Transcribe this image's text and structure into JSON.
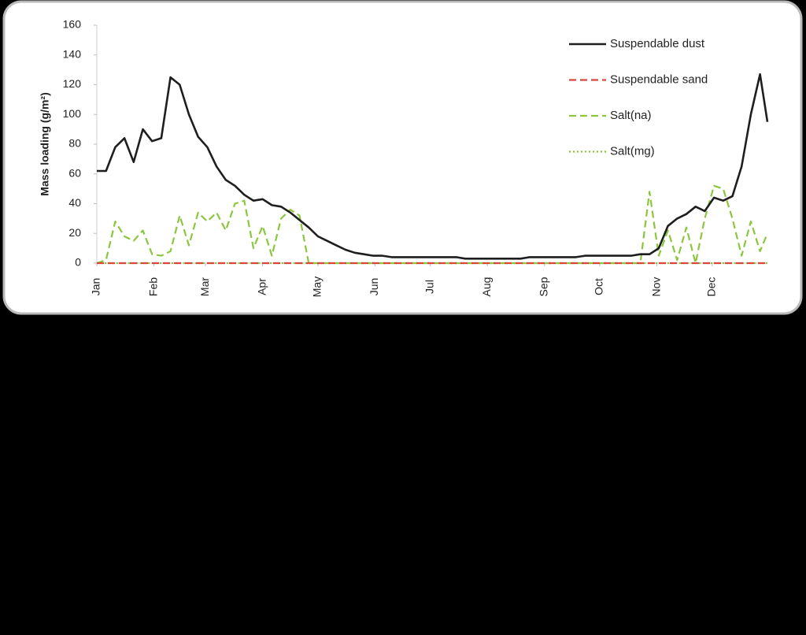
{
  "chart_data": {
    "type": "line",
    "y_label": "Mass loading (g/m²)",
    "x": [
      0,
      5,
      10,
      15,
      20,
      25,
      30,
      35,
      40,
      45,
      50,
      55,
      60,
      65,
      70,
      75,
      80,
      85,
      90,
      95,
      100,
      105,
      110,
      115,
      120,
      125,
      130,
      135,
      140,
      145,
      150,
      155,
      160,
      165,
      170,
      175,
      180,
      185,
      190,
      195,
      200,
      205,
      210,
      215,
      220,
      225,
      230,
      235,
      240,
      245,
      250,
      255,
      260,
      265,
      270,
      275,
      280,
      285,
      290,
      295,
      300,
      305,
      310,
      315,
      320,
      325,
      330,
      335,
      340,
      345,
      350,
      355,
      360,
      364
    ],
    "xlim": [
      0,
      364
    ],
    "xticks": [
      {
        "value": 0,
        "label": "Jan"
      },
      {
        "value": 31,
        "label": "Feb"
      },
      {
        "value": 59,
        "label": "Mar"
      },
      {
        "value": 90,
        "label": "Apr"
      },
      {
        "value": 120,
        "label": "May"
      },
      {
        "value": 151,
        "label": "Jun"
      },
      {
        "value": 181,
        "label": "Jul"
      },
      {
        "value": 212,
        "label": "Aug"
      },
      {
        "value": 243,
        "label": "Sep"
      },
      {
        "value": 273,
        "label": "Oct"
      },
      {
        "value": 304,
        "label": "Nov"
      },
      {
        "value": 334,
        "label": "Dec"
      }
    ],
    "ylim": [
      0,
      160
    ],
    "yticks": [
      0,
      20,
      40,
      60,
      80,
      100,
      120,
      140,
      160
    ],
    "legend": "top-right",
    "series": [
      {
        "name": "Suspendable dust",
        "color": "#1e1e1e",
        "style": "solid",
        "values": [
          62,
          62,
          78,
          84,
          68,
          90,
          82,
          84,
          125,
          120,
          100,
          85,
          78,
          65,
          56,
          52,
          46,
          42,
          43,
          39,
          38,
          34,
          29,
          24,
          18,
          15,
          12,
          9,
          7,
          6,
          5,
          5,
          4,
          4,
          4,
          4,
          4,
          4,
          4,
          4,
          3,
          3,
          3,
          3,
          3,
          3,
          3,
          4,
          4,
          4,
          4,
          4,
          4,
          5,
          5,
          5,
          5,
          5,
          5,
          6,
          6,
          10,
          25,
          30,
          33,
          38,
          35,
          44,
          42,
          45,
          65,
          100,
          127,
          95
        ]
      },
      {
        "name": "Suspendable sand",
        "color": "#d9463b",
        "style": "dashed",
        "values": [
          0,
          0,
          0,
          0,
          0,
          0,
          0,
          0,
          0,
          0,
          0,
          0,
          0,
          0,
          0,
          0,
          0,
          0,
          0,
          0,
          0,
          0,
          0,
          0,
          0,
          0,
          0,
          0,
          0,
          0,
          0,
          0,
          0,
          0,
          0,
          0,
          0,
          0,
          0,
          0,
          0,
          0,
          0,
          0,
          0,
          0,
          0,
          0,
          0,
          0,
          0,
          0,
          0,
          0,
          0,
          0,
          0,
          0,
          0,
          0,
          0,
          0,
          0,
          0,
          0,
          0,
          0,
          0,
          0,
          0,
          0,
          0,
          0,
          0
        ]
      },
      {
        "name": "Salt(na)",
        "color": "#8cc63f",
        "style": "dashed",
        "values": [
          0,
          2,
          28,
          18,
          15,
          22,
          6,
          5,
          8,
          32,
          12,
          34,
          28,
          34,
          22,
          40,
          42,
          10,
          25,
          5,
          30,
          36,
          32,
          0,
          0,
          0,
          0,
          0,
          0,
          0,
          0,
          0,
          0,
          0,
          0,
          0,
          0,
          0,
          0,
          0,
          0,
          0,
          0,
          0,
          0,
          0,
          0,
          0,
          0,
          0,
          0,
          0,
          0,
          0,
          0,
          0,
          0,
          0,
          0,
          0,
          48,
          5,
          22,
          2,
          24,
          0,
          30,
          52,
          50,
          30,
          5,
          28,
          8,
          20
        ]
      },
      {
        "name": "Salt(mg)",
        "color": "#8cc63f",
        "style": "dotted",
        "values": [
          0,
          0,
          0,
          0,
          0,
          0,
          0,
          0,
          0,
          0,
          0,
          0,
          0,
          0,
          0,
          0,
          0,
          0,
          0,
          0,
          0,
          0,
          0,
          0,
          0,
          0,
          0,
          0,
          0,
          0,
          0,
          0,
          0,
          0,
          0,
          0,
          0,
          0,
          0,
          0,
          0,
          0,
          0,
          0,
          0,
          0,
          0,
          0,
          0,
          0,
          0,
          0,
          0,
          0,
          0,
          0,
          0,
          0,
          0,
          0,
          0,
          0,
          0,
          0,
          0,
          0,
          0,
          0,
          0,
          0,
          0,
          0,
          0,
          0
        ]
      }
    ]
  }
}
